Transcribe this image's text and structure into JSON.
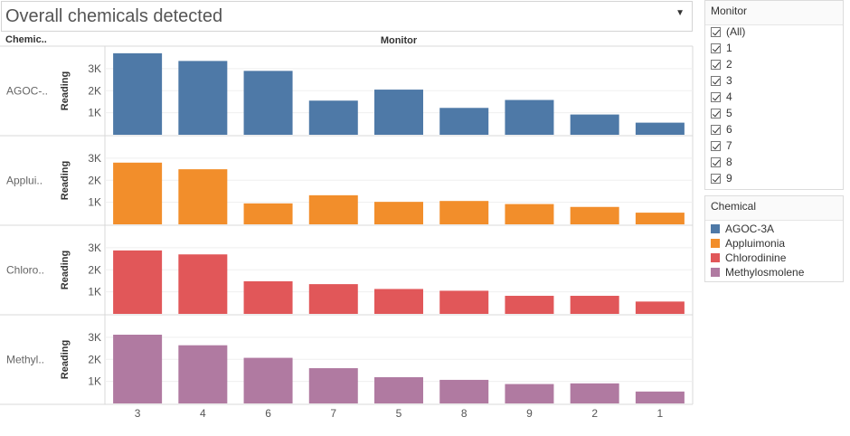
{
  "title": "Overall chemicals detected",
  "header": {
    "row_header": "Chemic..",
    "column_header": "Monitor"
  },
  "monitor_filter": {
    "title": "Monitor",
    "items": [
      "(All)",
      "1",
      "2",
      "3",
      "4",
      "5",
      "6",
      "7",
      "8",
      "9"
    ]
  },
  "chemical_legend": {
    "title": "Chemical",
    "items": [
      {
        "label": "AGOC-3A",
        "color": "#4e79a7"
      },
      {
        "label": "Appluimonia",
        "color": "#f28e2b"
      },
      {
        "label": "Chlorodinine",
        "color": "#e15759"
      },
      {
        "label": "Methylosmolene",
        "color": "#b07aa1"
      }
    ]
  },
  "chart_data": {
    "type": "bar",
    "xlabel": "Monitor",
    "ylabel": "Reading",
    "categories": [
      "3",
      "4",
      "6",
      "7",
      "5",
      "8",
      "9",
      "2",
      "1"
    ],
    "y_ticks": [
      "1K",
      "2K",
      "3K"
    ],
    "y_tick_values": [
      1000,
      2000,
      3000
    ],
    "ylim": [
      0,
      3900
    ],
    "panels": [
      {
        "row_label": "AGOC-..",
        "color": "#4e79a7",
        "values": [
          3700,
          3350,
          2900,
          1550,
          2050,
          1220,
          1580,
          920,
          550
        ]
      },
      {
        "row_label": "Applui..",
        "color": "#f28e2b",
        "values": [
          2800,
          2500,
          950,
          1320,
          1020,
          1060,
          920,
          790,
          530
        ]
      },
      {
        "row_label": "Chloro..",
        "color": "#e15759",
        "values": [
          2880,
          2700,
          1480,
          1350,
          1130,
          1050,
          820,
          820,
          560
        ]
      },
      {
        "row_label": "Methyl..",
        "color": "#b07aa1",
        "values": [
          3120,
          2640,
          2070,
          1600,
          1190,
          1070,
          880,
          910,
          540
        ]
      }
    ]
  }
}
